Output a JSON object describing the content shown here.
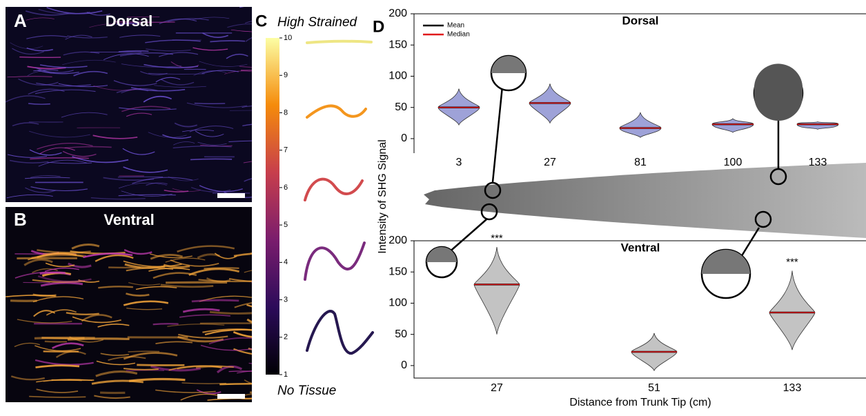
{
  "panels": {
    "a": {
      "letter": "A",
      "title": "Dorsal"
    },
    "b": {
      "letter": "B",
      "title": "Ventral"
    },
    "c": {
      "letter": "C"
    },
    "d": {
      "letter": "D"
    }
  },
  "colorbar": {
    "label_top": "High Strained",
    "label_bottom": "No Tissue",
    "lim": [
      1,
      10
    ],
    "ticks": [
      1,
      2,
      3,
      4,
      5,
      6,
      7,
      8,
      9,
      10
    ]
  },
  "chart_data": [
    {
      "type": "violin",
      "title": "Dorsal",
      "categories": [
        "3",
        "27",
        "81",
        "100",
        "133"
      ],
      "color": "#9ea2d8",
      "median": [
        50,
        57,
        17,
        23,
        23
      ],
      "mean": [
        50,
        57,
        17,
        23,
        23
      ],
      "min": [
        22,
        25,
        2,
        10,
        15
      ],
      "max": [
        80,
        88,
        42,
        32,
        27
      ],
      "ylim": [
        -10,
        200
      ],
      "yticks": [
        0,
        50,
        100,
        150,
        200
      ],
      "legend": [
        {
          "name": "Mean",
          "color": "#000000"
        },
        {
          "name": "Median",
          "color": "#e0191b"
        }
      ]
    },
    {
      "type": "violin",
      "title": "Ventral",
      "categories": [
        "27",
        "51",
        "133"
      ],
      "color": "#c3c3c3",
      "median": [
        130,
        22,
        85
      ],
      "mean": [
        130,
        22,
        85
      ],
      "min": [
        50,
        -8,
        25
      ],
      "max": [
        190,
        52,
        152
      ],
      "value_annotations": [
        "***",
        null,
        "***"
      ],
      "ylim": [
        -20,
        200
      ],
      "yticks": [
        0,
        50,
        100,
        150,
        200
      ],
      "y_label": "Intensity of SHG Signal",
      "x_label": "Distance from Trunk Tip (cm)"
    }
  ]
}
